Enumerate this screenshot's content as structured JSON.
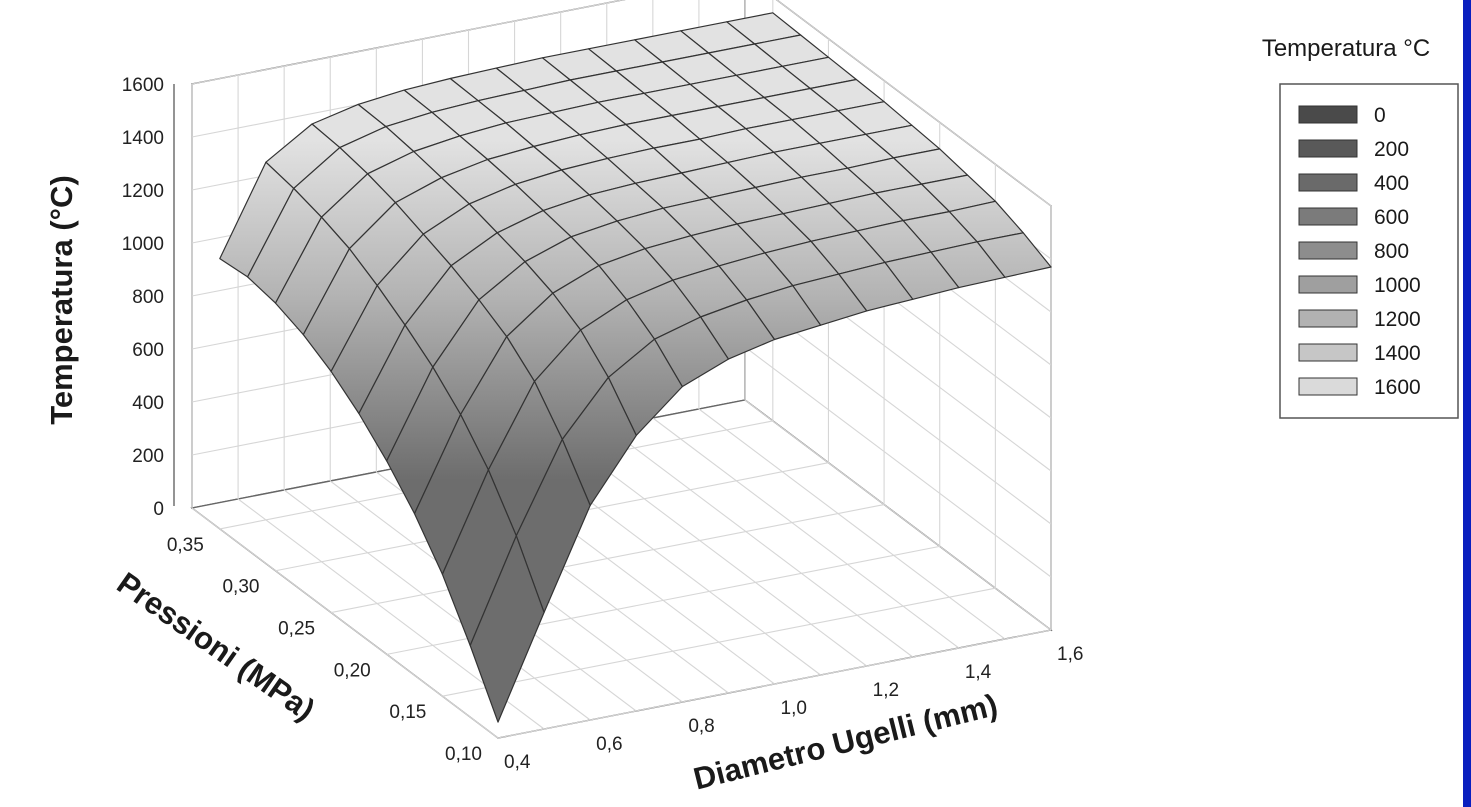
{
  "chart_data": {
    "type": "surface",
    "zlabel": "Temperatura (°C)",
    "xlabel": "Pressioni (MPa)",
    "ylabel": "Diametro Ugelli (mm)",
    "z_ticks": [
      "0",
      "200",
      "400",
      "600",
      "800",
      "1000",
      "1200",
      "1400",
      "1600"
    ],
    "x_ticks": [
      "0,35",
      "0,30",
      "0,25",
      "0,20",
      "0,15",
      "0,10"
    ],
    "y_ticks": [
      "0,4",
      "0,6",
      "0,8",
      "1,0",
      "1,2",
      "1,4",
      "1,6"
    ],
    "zlim": [
      0,
      1600
    ],
    "pressure_range": [
      0.1,
      0.375
    ],
    "diameter_range": [
      0.4,
      1.6
    ],
    "legend": {
      "title": "Temperatura °C",
      "placement": "top-right",
      "entries": [
        {
          "label": "0",
          "color": "#4a4a4a"
        },
        {
          "label": "200",
          "color": "#595959"
        },
        {
          "label": "400",
          "color": "#6a6a6a"
        },
        {
          "label": "600",
          "color": "#7b7b7b"
        },
        {
          "label": "800",
          "color": "#8d8d8d"
        },
        {
          "label": "1000",
          "color": "#9f9f9f"
        },
        {
          "label": "1200",
          "color": "#b2b2b2"
        },
        {
          "label": "1400",
          "color": "#c6c6c6"
        },
        {
          "label": "1600",
          "color": "#dadada"
        }
      ]
    },
    "pressures": [
      0.1,
      0.125,
      0.15,
      0.175,
      0.2,
      0.225,
      0.25,
      0.275,
      0.3,
      0.325,
      0.35
    ],
    "diameters": [
      0.4,
      0.5,
      0.6,
      0.7,
      0.8,
      0.9,
      1.0,
      1.1,
      1.2,
      1.3,
      1.4,
      1.5,
      1.6
    ],
    "temperature": [
      [
        60,
        440,
        810,
        1040,
        1190,
        1260,
        1300,
        1320,
        1340,
        1350,
        1360,
        1365,
        1370
      ],
      [
        270,
        650,
        980,
        1180,
        1290,
        1340,
        1370,
        1390,
        1400,
        1410,
        1415,
        1420,
        1420
      ],
      [
        460,
        820,
        1120,
        1280,
        1360,
        1400,
        1420,
        1435,
        1445,
        1450,
        1455,
        1455,
        1460
      ],
      [
        610,
        950,
        1210,
        1340,
        1410,
        1440,
        1455,
        1465,
        1470,
        1475,
        1480,
        1480,
        1480
      ],
      [
        730,
        1050,
        1270,
        1380,
        1440,
        1465,
        1480,
        1485,
        1490,
        1495,
        1495,
        1500,
        1500
      ],
      [
        830,
        1130,
        1320,
        1410,
        1460,
        1485,
        1495,
        1500,
        1505,
        1510,
        1510,
        1510,
        1510
      ],
      [
        910,
        1200,
        1360,
        1440,
        1480,
        1500,
        1510,
        1515,
        1515,
        1520,
        1520,
        1520,
        1520
      ],
      [
        970,
        1260,
        1400,
        1460,
        1495,
        1510,
        1520,
        1525,
        1525,
        1525,
        1525,
        1525,
        1525
      ],
      [
        1010,
        1300,
        1430,
        1480,
        1505,
        1520,
        1525,
        1530,
        1530,
        1530,
        1530,
        1530,
        1530
      ],
      [
        1030,
        1330,
        1450,
        1495,
        1515,
        1525,
        1530,
        1535,
        1535,
        1535,
        1535,
        1535,
        1535
      ],
      [
        1020,
        1350,
        1460,
        1500,
        1520,
        1530,
        1535,
        1540,
        1540,
        1540,
        1540,
        1540,
        1540
      ]
    ]
  }
}
